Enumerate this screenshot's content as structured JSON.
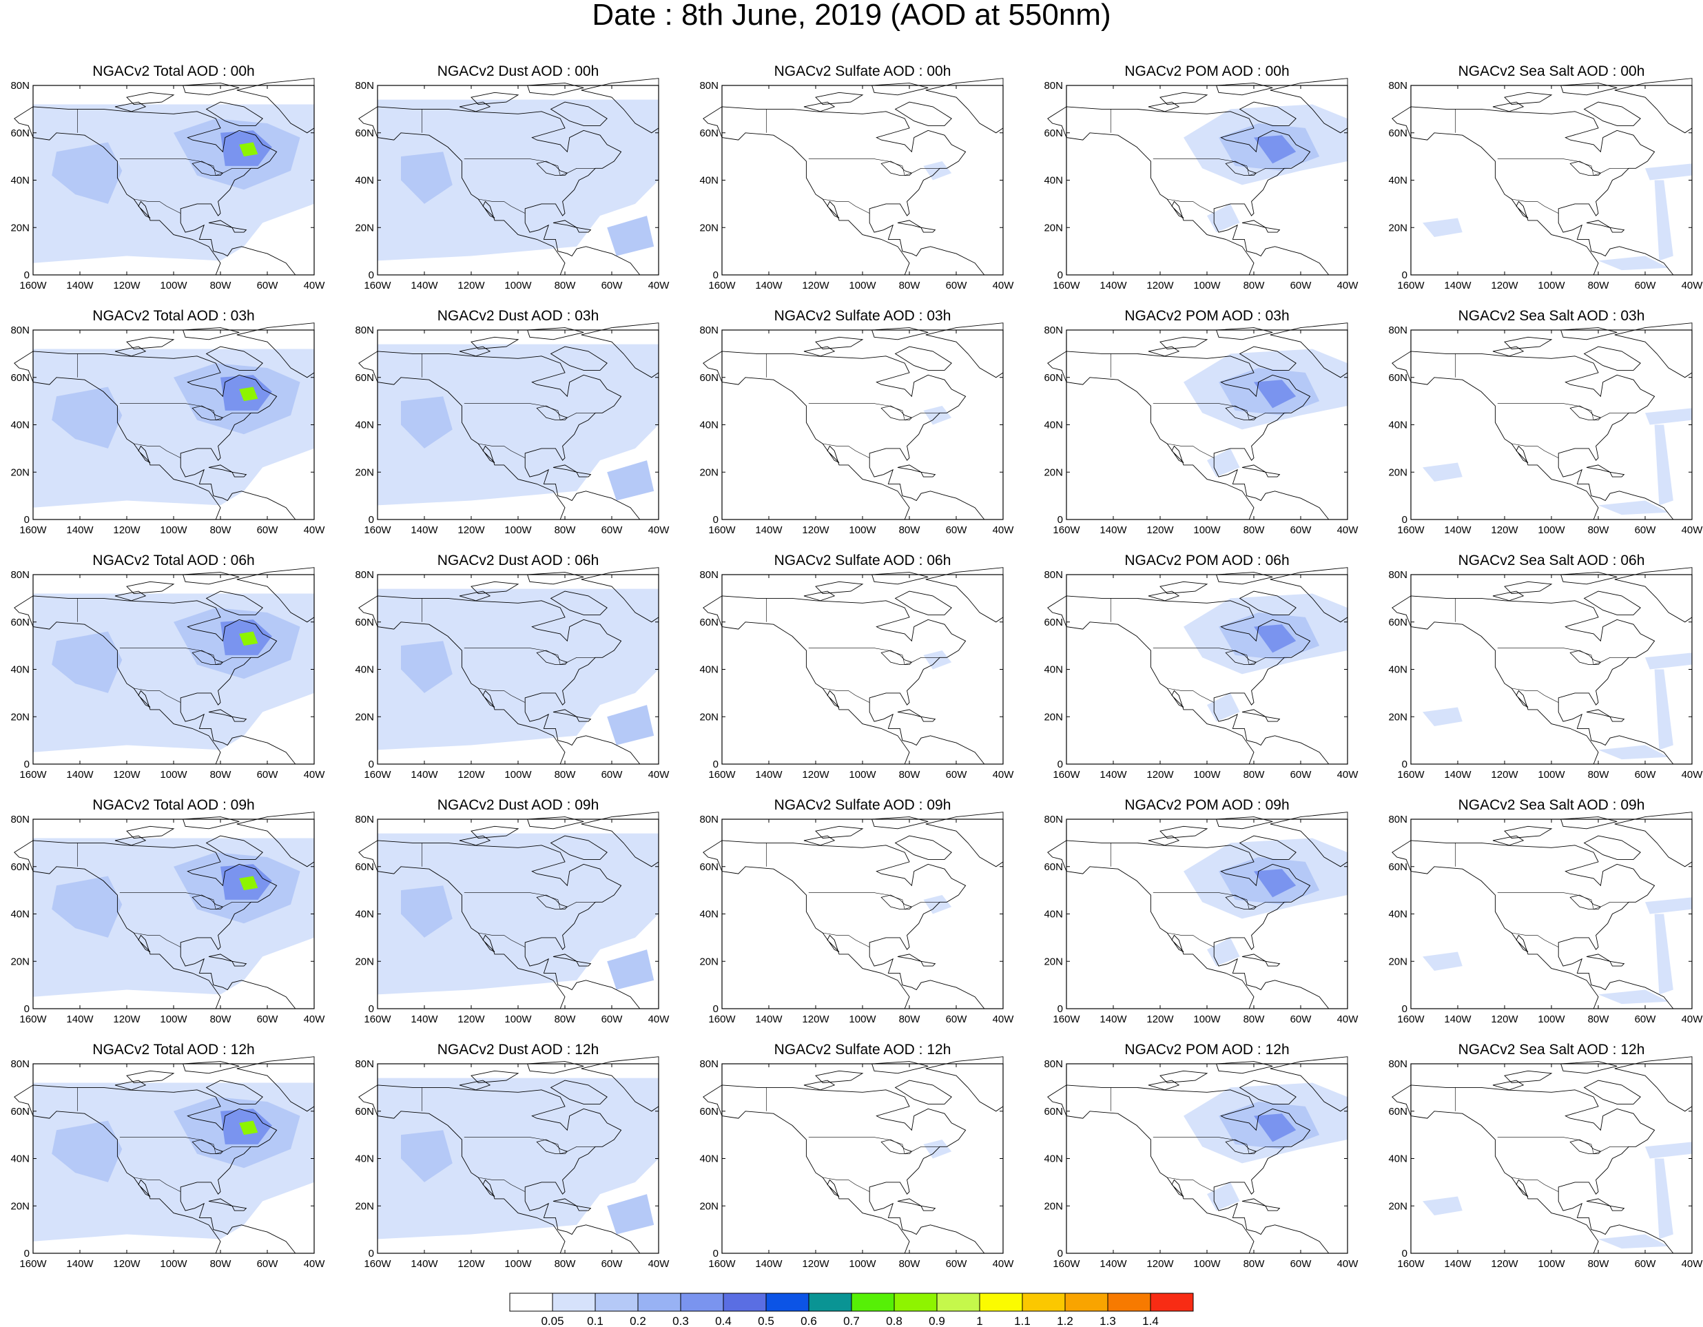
{
  "title": "Date : 8th June, 2019 (AOD at 550nm)",
  "rows": [
    "00h",
    "03h",
    "06h",
    "09h",
    "12h"
  ],
  "panel_titles": [
    [
      "NGACv2 Total AOD : 00h",
      "NGACv2 Dust AOD : 00h",
      "NGACv2 Sulfate AOD : 00h",
      "NGACv2 POM AOD : 00h",
      "NGACv2 Sea Salt AOD : 00h"
    ],
    [
      "NGACv2 Total AOD : 03h",
      "NGACv2 Dust AOD : 03h",
      "NGACv2 Sulfate AOD : 03h",
      "NGACv2 POM AOD : 03h",
      "NGACv2 Sea Salt AOD : 03h"
    ],
    [
      "NGACv2 Total AOD : 06h",
      "NGACv2 Dust AOD : 06h",
      "NGACv2 Sulfate AOD : 06h",
      "NGACv2 POM AOD : 06h",
      "NGACv2 Sea Salt AOD : 06h"
    ],
    [
      "NGACv2 Total AOD : 09h",
      "NGACv2 Dust AOD : 09h",
      "NGACv2 Sulfate AOD : 09h",
      "NGACv2 POM AOD : 09h",
      "NGACv2 Sea Salt  AOD : 09h"
    ],
    [
      "NGACv2 Total AOD  : 12h",
      "NGACv2 Dust AOD : 12h",
      "NGACv2 Sulfate AOD : 12h",
      "NGACv2 POM  AOD : 12h",
      "NGACv2 Sea Salt  AOD : 12h"
    ]
  ],
  "axes": {
    "lat_labels": [
      "0",
      "20N",
      "40N",
      "60N",
      "80N"
    ],
    "lon_labels": [
      "160W",
      "140W",
      "120W",
      "100W",
      "80W",
      "60W",
      "40W"
    ],
    "lat_range": [
      0,
      80
    ],
    "lon_range": [
      -160,
      -40
    ]
  },
  "colorbar": {
    "colors": [
      "#ffffff",
      "#d6e2fb",
      "#b5c9f7",
      "#98b2f4",
      "#7a94ef",
      "#5a6ee3",
      "#0c54e6",
      "#0a9494",
      "#56f006",
      "#8ef400",
      "#c5f84b",
      "#fbfb00",
      "#fbc800",
      "#f9a400",
      "#f77a00",
      "#f82c14"
    ],
    "labels": [
      "0.05",
      "0.1",
      "0.2",
      "0.3",
      "0.4",
      "0.5",
      "0.6",
      "0.7",
      "0.8",
      "0.9",
      "1",
      "1.1",
      "1.2",
      "1.3",
      "1.4"
    ]
  },
  "panel_colors": {
    "ocean": "#ffffff",
    "fill_light": "#d6e2fb",
    "fill_medium": "#b5c9f7",
    "fill_strong": "#7a94ef",
    "hotspot": "#8ef400",
    "coast": "#000000"
  }
}
